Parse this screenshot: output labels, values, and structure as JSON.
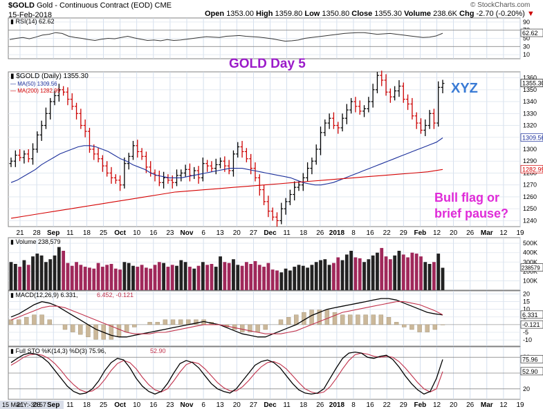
{
  "header": {
    "symbol": "$GOLD",
    "description": "Gold - Continuous Contract (EOD)",
    "exchange": "CME",
    "date": "15-Feb-2018",
    "open_label": "Open",
    "open": "1353.00",
    "high_label": "High",
    "high": "1359.80",
    "low_label": "Low",
    "low": "1350.80",
    "close_label": "Close",
    "close": "1355.30",
    "volume_label": "Volume",
    "volume": "238.6K",
    "chg_label": "Chg",
    "chg": "-2.70 (-0.20%)",
    "chg_arrow": "▼",
    "watermark": "© StockCharts.com"
  },
  "annotations": {
    "title": "GOLD  Day 5",
    "xyz": "XYZ",
    "bull_flag_line1": "Bull flag or",
    "bull_flag_line2": "brief pause?"
  },
  "colors": {
    "up_bar": "#000000",
    "down_bar": "#cc0000",
    "ma50": "#1a2e9a",
    "ma200": "#d40000",
    "title_color": "#9b1bc9",
    "xyz_color": "#3a7bd5",
    "bull_flag_color": "#e02bd8",
    "volume_up": "#222222",
    "volume_down": "#a0285a",
    "panel_bg": "#f2f5fb"
  },
  "chart_data": {
    "type": "ohlc",
    "xaxis_ticks": [
      "21",
      "28",
      "Sep",
      "11",
      "18",
      "25",
      "Oct",
      "10",
      "16",
      "23",
      "Nov",
      "6",
      "13",
      "20",
      "27",
      "Dec",
      "11",
      "18",
      "26",
      "2018",
      "8",
      "16",
      "22",
      "29",
      "Feb",
      "12",
      "20",
      "26",
      "Mar",
      "12",
      "19"
    ],
    "bottom_axis_label": "15 Mar Y:-30.57",
    "rsi": {
      "label": "RSI(14)",
      "value": "62.62",
      "ticks": [
        "90",
        "70",
        "50",
        "30",
        "10"
      ],
      "values": [
        47,
        50,
        52,
        49,
        53,
        58,
        60,
        64,
        62,
        55,
        52,
        50,
        47,
        45,
        48,
        50,
        49,
        52,
        55,
        51,
        48,
        45,
        46,
        44,
        47,
        45,
        46,
        48,
        50,
        52,
        54,
        53,
        52,
        55,
        56,
        57,
        55,
        54,
        53,
        51,
        49,
        46,
        43,
        44,
        46,
        50,
        52,
        54,
        56,
        58,
        60,
        62,
        63,
        64,
        64,
        62,
        60,
        61,
        62,
        60,
        58,
        56,
        54,
        52,
        53,
        56,
        62.62
      ]
    },
    "price": {
      "label": "$GOLD (Daily)",
      "value": "1355.30",
      "ma50_label": "MA(50)",
      "ma50_value": "1309.56",
      "ma200_label": "MA(200)",
      "ma200_value": "1282.99",
      "ylim": [
        1235,
        1365
      ],
      "ticks": [
        "1360",
        "1350",
        "1340",
        "1330",
        "1320",
        "1310",
        "1300",
        "1290",
        "1280",
        "1270",
        "1260",
        "1250",
        "1240"
      ],
      "closes": [
        1290,
        1295,
        1293,
        1296,
        1292,
        1300,
        1312,
        1320,
        1330,
        1340,
        1345,
        1350,
        1348,
        1342,
        1336,
        1330,
        1320,
        1315,
        1300,
        1296,
        1292,
        1286,
        1280,
        1276,
        1274,
        1270,
        1288,
        1294,
        1303,
        1298,
        1294,
        1285,
        1280,
        1278,
        1272,
        1276,
        1274,
        1272,
        1278,
        1280,
        1283,
        1278,
        1282,
        1276,
        1288,
        1286,
        1284,
        1287,
        1290,
        1286,
        1282,
        1296,
        1302,
        1298,
        1292,
        1284,
        1276,
        1266,
        1256,
        1248,
        1243,
        1240,
        1250,
        1256,
        1262,
        1268,
        1270,
        1276,
        1284,
        1290,
        1300,
        1314,
        1322,
        1326,
        1320,
        1318,
        1326,
        1333,
        1340,
        1336,
        1332,
        1334,
        1340,
        1350,
        1362,
        1358,
        1348,
        1344,
        1349,
        1353,
        1342,
        1338,
        1328,
        1322,
        1316,
        1320,
        1330,
        1322,
        1352,
        1355.3
      ],
      "ma50": [
        1272,
        1274,
        1277,
        1280,
        1283,
        1287,
        1290,
        1293,
        1296,
        1298,
        1300,
        1302,
        1303,
        1303,
        1302,
        1300,
        1298,
        1295,
        1292,
        1290,
        1287,
        1285,
        1283,
        1280,
        1278,
        1277,
        1276,
        1276,
        1276,
        1277,
        1278,
        1279,
        1280,
        1281,
        1282,
        1283,
        1284,
        1284,
        1284,
        1283,
        1282,
        1281,
        1280,
        1279,
        1278,
        1277,
        1276,
        1274,
        1272,
        1271,
        1270,
        1270,
        1271,
        1272,
        1274,
        1276,
        1278,
        1280,
        1282,
        1284,
        1286,
        1288,
        1290,
        1292,
        1294,
        1296,
        1298,
        1300,
        1302,
        1304,
        1306,
        1309.56
      ],
      "ma200": [
        1242,
        1244,
        1246,
        1248,
        1250,
        1252,
        1254,
        1256,
        1258,
        1260,
        1262,
        1264,
        1265,
        1266,
        1267,
        1268,
        1269,
        1270,
        1271,
        1272,
        1273,
        1274,
        1275,
        1276,
        1277,
        1278,
        1279,
        1280,
        1281,
        1282.99
      ]
    },
    "volume": {
      "label": "Volume",
      "value": "238,579",
      "ticks": [
        "500K",
        "400K",
        "300K",
        "200K",
        "100K"
      ],
      "value_tick": "238579",
      "values": [
        300,
        280,
        250,
        320,
        270,
        360,
        390,
        370,
        300,
        330,
        370,
        460,
        420,
        290,
        260,
        300,
        270,
        250,
        240,
        230,
        290,
        250,
        270,
        280,
        230,
        220,
        300,
        290,
        260,
        250,
        270,
        240,
        230,
        270,
        300,
        290,
        250,
        270,
        260,
        320,
        300,
        250,
        230,
        260,
        300,
        270,
        280,
        250,
        360,
        300,
        290,
        330,
        270,
        260,
        300,
        280,
        310,
        270,
        250,
        290,
        220,
        210,
        190,
        230,
        210,
        250,
        270,
        260,
        240,
        270,
        300,
        320,
        330,
        270,
        290,
        350,
        320,
        380,
        420,
        350,
        340,
        300,
        330,
        370,
        400,
        450,
        360,
        330,
        370,
        420,
        380,
        350,
        400,
        390,
        360,
        300,
        280,
        300,
        390,
        239
      ]
    },
    "macd": {
      "label": "MACD(12,26,9)",
      "value": "6.331",
      "signal": "6.452",
      "hist": "-0.121",
      "ticks": [
        "20",
        "15",
        "10",
        "5",
        "0",
        "-5",
        "-10"
      ],
      "macd_line": [
        5,
        7,
        10,
        13,
        15,
        14,
        12,
        9,
        6,
        3,
        0,
        -3,
        -5,
        -7,
        -8,
        -8,
        -7,
        -6,
        -5,
        -4,
        -3,
        -2,
        -1,
        0,
        1,
        2,
        1,
        0,
        -2,
        -4,
        -6,
        -7,
        -8,
        -8,
        -6,
        -4,
        -2,
        0,
        3,
        6,
        8,
        10,
        11,
        12,
        13,
        14,
        15,
        16,
        17,
        17,
        16,
        14,
        12,
        10,
        8,
        7,
        6.331
      ],
      "signal_line": [
        3,
        5,
        7,
        9,
        11,
        12,
        12,
        11,
        9,
        7,
        5,
        3,
        1,
        -1,
        -3,
        -5,
        -6,
        -6,
        -6,
        -5,
        -5,
        -4,
        -3,
        -2,
        -1,
        0,
        0,
        0,
        -1,
        -2,
        -3,
        -4,
        -5,
        -6,
        -6,
        -6,
        -5,
        -4,
        -2,
        0,
        2,
        4,
        6,
        8,
        9,
        10,
        11,
        12,
        13,
        14,
        15,
        15,
        14,
        13,
        11,
        9,
        6.452
      ]
    },
    "sto": {
      "label": "Full STO %K(14,3) %D(3)",
      "k_value": "75.96",
      "d_value": "52.90",
      "ticks": [
        "80",
        "50",
        "20"
      ],
      "k_line": [
        70,
        78,
        85,
        88,
        86,
        80,
        70,
        55,
        40,
        25,
        15,
        10,
        12,
        20,
        35,
        55,
        70,
        78,
        75,
        60,
        40,
        25,
        15,
        10,
        15,
        30,
        50,
        68,
        74,
        70,
        60,
        45,
        30,
        20,
        15,
        12,
        20,
        35,
        50,
        65,
        72,
        75,
        70,
        60,
        45,
        30,
        18,
        12,
        10,
        12,
        20,
        40,
        60,
        78,
        88,
        90,
        88,
        80,
        78,
        82,
        84,
        76,
        62,
        45,
        30,
        18,
        10,
        15,
        40,
        75.96
      ],
      "d_line": [
        65,
        72,
        80,
        85,
        86,
        84,
        78,
        68,
        55,
        40,
        28,
        18,
        14,
        16,
        24,
        38,
        55,
        68,
        74,
        70,
        58,
        42,
        28,
        18,
        14,
        20,
        35,
        52,
        66,
        71,
        68,
        58,
        45,
        32,
        22,
        16,
        16,
        24,
        36,
        50,
        62,
        70,
        72,
        67,
        58,
        45,
        32,
        20,
        14,
        11,
        14,
        24,
        40,
        58,
        74,
        85,
        88,
        86,
        82,
        80,
        82,
        80,
        72,
        60,
        46,
        32,
        20,
        14,
        20,
        52.9
      ]
    }
  }
}
